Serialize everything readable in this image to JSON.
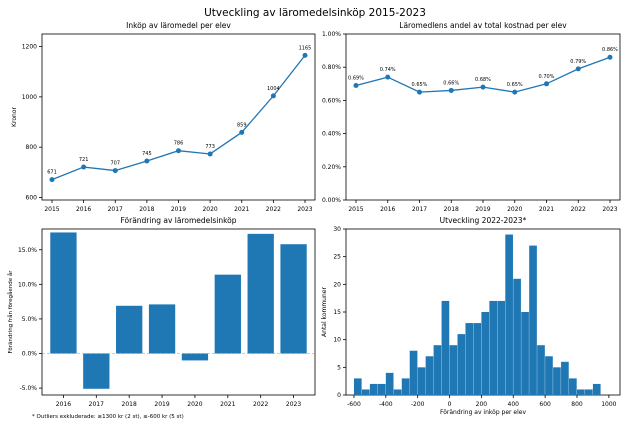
{
  "suptitle": "Utveckling av läromedelsinköp 2015-2023",
  "footnote": "* Outliers exkluderade: ≥1300 kr (2 st), ≤-600 kr (5 st)",
  "colors": {
    "bar": "#1f77b4",
    "line": "#1f77b4",
    "axis": "#000000",
    "zero": "#999999"
  },
  "chart_data": [
    {
      "type": "line",
      "title": "Inköp av läromedel per elev",
      "xlabel": "",
      "ylabel": "Kronor",
      "x": [
        2015,
        2016,
        2017,
        2018,
        2019,
        2020,
        2021,
        2022,
        2023
      ],
      "values": [
        671,
        721,
        707,
        745,
        786,
        773,
        859,
        1004,
        1165
      ],
      "point_labels": [
        "671",
        "721",
        "707",
        "745",
        "786",
        "773",
        "859",
        "1004",
        "1165"
      ],
      "ylim": [
        590,
        1250
      ],
      "yticks": [
        600,
        800,
        1000,
        1200
      ],
      "grid": false
    },
    {
      "type": "line",
      "title": "Läromedlens andel av total kostnad per elev",
      "xlabel": "",
      "ylabel": "",
      "x": [
        2015,
        2016,
        2017,
        2018,
        2019,
        2020,
        2021,
        2022,
        2023
      ],
      "values": [
        0.69,
        0.74,
        0.65,
        0.66,
        0.68,
        0.65,
        0.7,
        0.79,
        0.86
      ],
      "point_labels": [
        "0.69%",
        "0.74%",
        "0.65%",
        "0.66%",
        "0.68%",
        "0.65%",
        "0.70%",
        "0.79%",
        "0.86%"
      ],
      "ylim": [
        0,
        1.0
      ],
      "yticks": [
        0,
        0.2,
        0.4,
        0.6,
        0.8,
        1.0
      ],
      "ytick_labels": [
        "0.00%",
        "0.20%",
        "0.40%",
        "0.60%",
        "0.80%",
        "1.00%"
      ],
      "grid": false
    },
    {
      "type": "bar",
      "title": "Förändring av läromedelsinköp",
      "xlabel": "",
      "ylabel": "Förändring från föregående år",
      "categories": [
        "2016",
        "2017",
        "2018",
        "2019",
        "2020",
        "2021",
        "2022",
        "2023"
      ],
      "values": [
        17.5,
        -5.1,
        6.9,
        7.1,
        -1.0,
        11.4,
        17.3,
        15.8
      ],
      "ylim": [
        -6,
        18
      ],
      "yticks": [
        -5,
        0,
        5,
        10,
        15
      ],
      "ytick_labels": [
        "-5.0%",
        "0.0%",
        "5.0%",
        "10.0%",
        "15.0%"
      ],
      "zero_line": true,
      "grid": false
    },
    {
      "type": "bar",
      "subtype": "histogram",
      "title": "Utveckling 2022-2023*",
      "xlabel": "Förändring av inköp per elev",
      "ylabel": "Antal kommuner",
      "bin_start": -600,
      "bin_width": 50,
      "values": [
        3,
        1,
        2,
        2,
        4,
        1,
        3,
        8,
        5,
        7,
        9,
        17,
        9,
        11,
        13,
        13,
        15,
        17,
        17,
        29,
        21,
        15,
        27,
        9,
        7,
        5,
        6,
        3,
        1,
        1,
        2
      ],
      "xlim": [
        -650,
        1070
      ],
      "ylim": [
        0,
        30
      ],
      "xticks": [
        -600,
        -400,
        -200,
        0,
        200,
        400,
        600,
        800,
        1000
      ],
      "yticks": [
        0,
        5,
        10,
        15,
        20,
        25,
        30
      ],
      "grid": false
    }
  ]
}
